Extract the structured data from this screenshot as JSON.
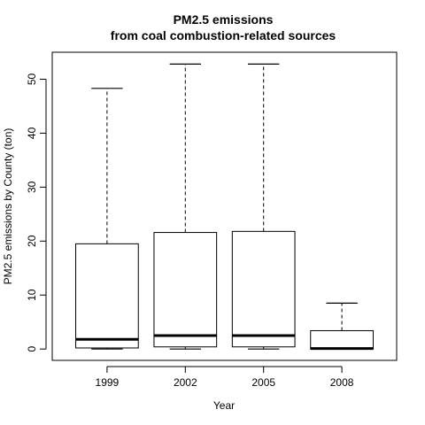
{
  "chart_data": {
    "type": "box",
    "title_line1": "PM2.5 emissions",
    "title_line2": "from coal combustion-related sources",
    "xlabel": "Year",
    "ylabel": "PM2.5 emissions by County (ton)",
    "categories": [
      "1999",
      "2002",
      "2005",
      "2008"
    ],
    "y_ticks": [
      0,
      10,
      20,
      30,
      40,
      50
    ],
    "ylim": [
      -2.1,
      55.0
    ],
    "grid": false,
    "legend": "none",
    "boxes": [
      {
        "category": "1999",
        "whisker_low": 0.0,
        "q1": 0.2,
        "median": 1.8,
        "q3": 19.5,
        "whisker_high": 48.3
      },
      {
        "category": "2002",
        "whisker_low": 0.0,
        "q1": 0.4,
        "median": 2.5,
        "q3": 21.6,
        "whisker_high": 52.8
      },
      {
        "category": "2005",
        "whisker_low": 0.0,
        "q1": 0.4,
        "median": 2.5,
        "q3": 21.8,
        "whisker_high": 52.8
      },
      {
        "category": "2008",
        "whisker_low": 0.0,
        "q1": 0.0,
        "median": 0.1,
        "q3": 3.4,
        "whisker_high": 8.5
      }
    ]
  }
}
